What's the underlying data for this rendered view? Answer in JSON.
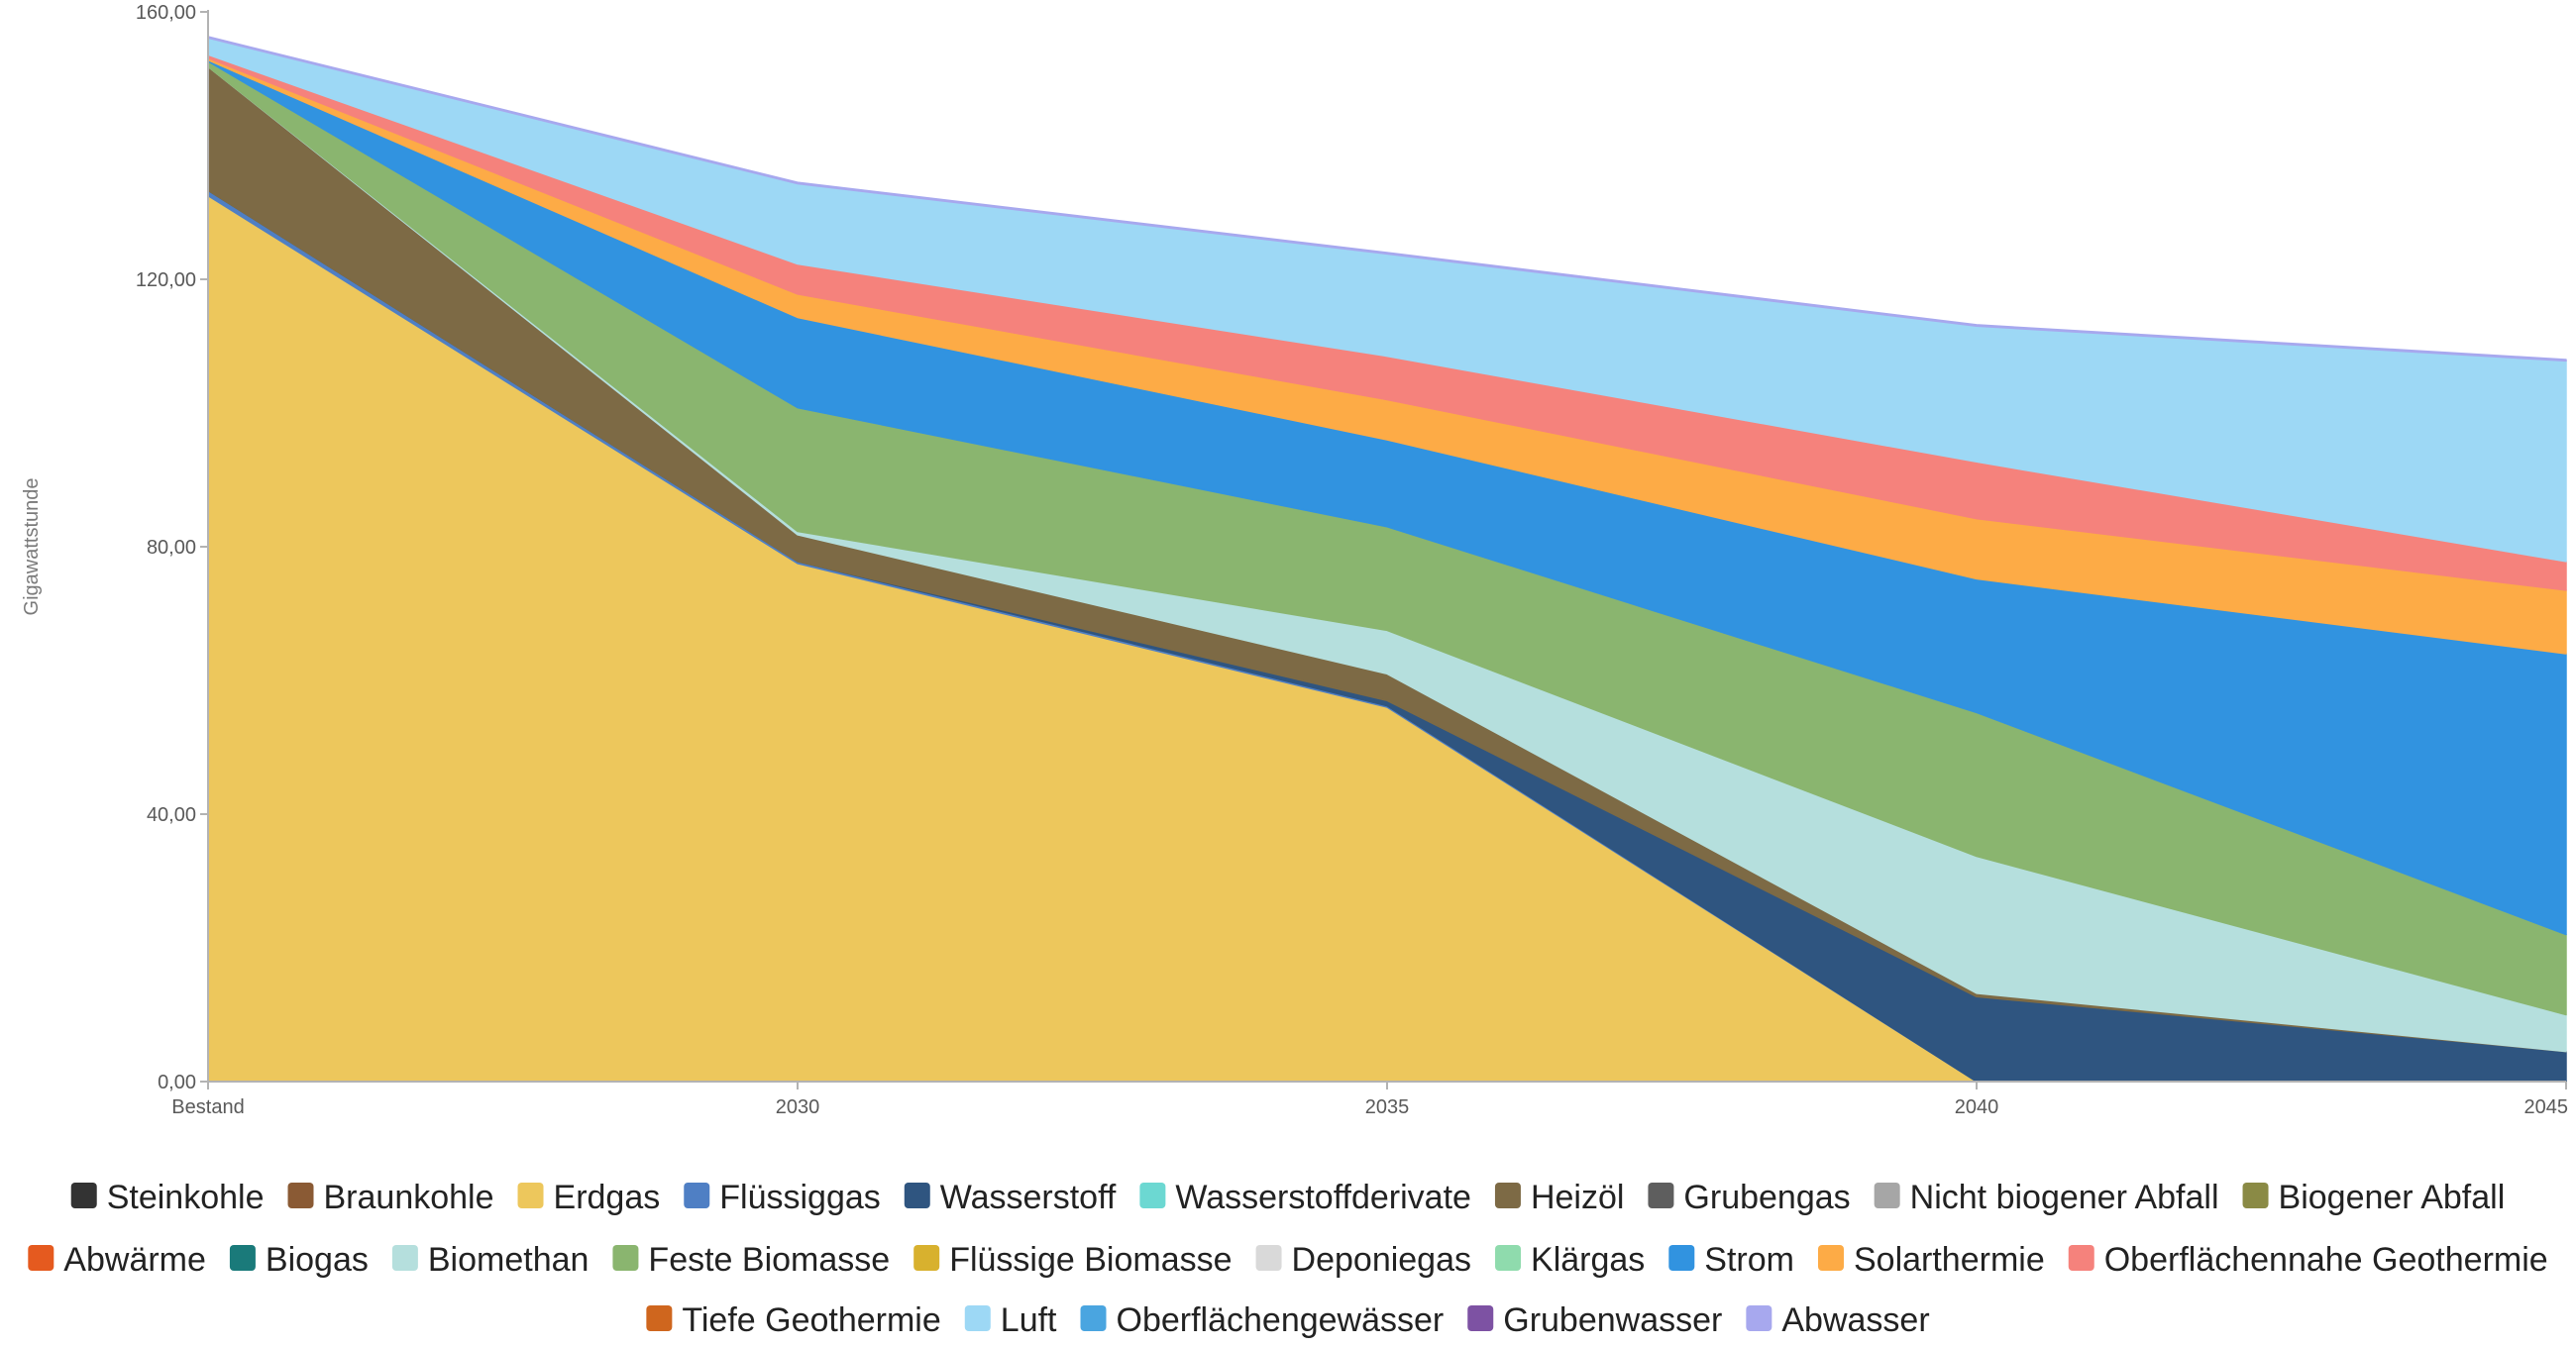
{
  "chart_data": {
    "type": "area",
    "stacked": true,
    "ylabel": "Gigawattstunde",
    "ylim": [
      0,
      160
    ],
    "yticks": [
      "0,00",
      "40,00",
      "80,00",
      "120,00",
      "160,00"
    ],
    "ytick_values": [
      0,
      40,
      80,
      120,
      160
    ],
    "categories": [
      "Bestand",
      "2030",
      "2035",
      "2040",
      "2045"
    ],
    "legend_position": "bottom",
    "series": [
      {
        "name": "Steinkohle",
        "color": "#333333",
        "values": [
          0,
          0,
          0,
          0,
          0
        ]
      },
      {
        "name": "Braunkohle",
        "color": "#8a5a34",
        "values": [
          0,
          0,
          0,
          0,
          0
        ]
      },
      {
        "name": "Erdgas",
        "color": "#edc75c",
        "values": [
          132.5,
          77.5,
          56,
          0,
          0
        ]
      },
      {
        "name": "Flüssiggas",
        "color": "#4f7fc4",
        "values": [
          0.8,
          0.3,
          0.2,
          0,
          0
        ]
      },
      {
        "name": "Wasserstoff",
        "color": "#2f5580",
        "values": [
          0,
          0,
          0.8,
          12.7,
          4.5
        ]
      },
      {
        "name": "Wasserstoffderivate",
        "color": "#6cd8d2",
        "values": [
          0,
          0,
          0,
          0,
          0
        ]
      },
      {
        "name": "Heizöl",
        "color": "#7d6a45",
        "values": [
          18.5,
          4,
          4,
          0.5,
          0
        ]
      },
      {
        "name": "Grubengas",
        "color": "#5e5e5e",
        "values": [
          0,
          0,
          0,
          0,
          0
        ]
      },
      {
        "name": "Nicht biogener Abfall",
        "color": "#a6a6a6",
        "values": [
          0,
          0,
          0,
          0,
          0
        ]
      },
      {
        "name": "Biogener Abfall",
        "color": "#8a8a45",
        "values": [
          0,
          0,
          0,
          0,
          0
        ]
      },
      {
        "name": "Abwärme",
        "color": "#e55a1f",
        "values": [
          0,
          0,
          0,
          0,
          0
        ]
      },
      {
        "name": "Biogas",
        "color": "#1a7a7a",
        "values": [
          0,
          0,
          0,
          0,
          0
        ]
      },
      {
        "name": "Biomethan",
        "color": "#b5dfdd",
        "values": [
          0,
          0.5,
          6.5,
          20.5,
          5.5
        ]
      },
      {
        "name": "Feste Biomasse",
        "color": "#8ab56f",
        "values": [
          0.8,
          18.5,
          15.5,
          21.5,
          12
        ]
      },
      {
        "name": "Flüssige Biomasse",
        "color": "#d8b12e",
        "values": [
          0,
          0,
          0,
          0,
          0
        ]
      },
      {
        "name": "Deponiegas",
        "color": "#d9d9d9",
        "values": [
          0,
          0,
          0,
          0,
          0
        ]
      },
      {
        "name": "Klärgas",
        "color": "#8fdbad",
        "values": [
          0,
          0,
          0,
          0,
          0
        ]
      },
      {
        "name": "Strom",
        "color": "#3193e0",
        "values": [
          0.2,
          13.5,
          13,
          20,
          42
        ]
      },
      {
        "name": "Solarthermie",
        "color": "#fdab46",
        "values": [
          0.3,
          3.5,
          6,
          9,
          9.5
        ]
      },
      {
        "name": "Oberflächennahe Geothermie",
        "color": "#f5827c",
        "values": [
          0.5,
          4.5,
          6.5,
          8.5,
          4.3
        ]
      },
      {
        "name": "Tiefe Geothermie",
        "color": "#cf661e",
        "values": [
          0,
          0,
          0,
          0,
          0
        ]
      },
      {
        "name": "Luft",
        "color": "#9dd8f5",
        "values": [
          2.5,
          12,
          15.3,
          20.3,
          30
        ]
      },
      {
        "name": "Oberflächengewässer",
        "color": "#4aa5e0",
        "values": [
          0,
          0,
          0,
          0,
          0
        ]
      },
      {
        "name": "Grubenwasser",
        "color": "#7d52a3",
        "values": [
          0,
          0,
          0,
          0,
          0
        ]
      },
      {
        "name": "Abwasser",
        "color": "#a7a8ee",
        "values": [
          0.2,
          0.2,
          0.2,
          0.2,
          0.2
        ]
      }
    ]
  }
}
